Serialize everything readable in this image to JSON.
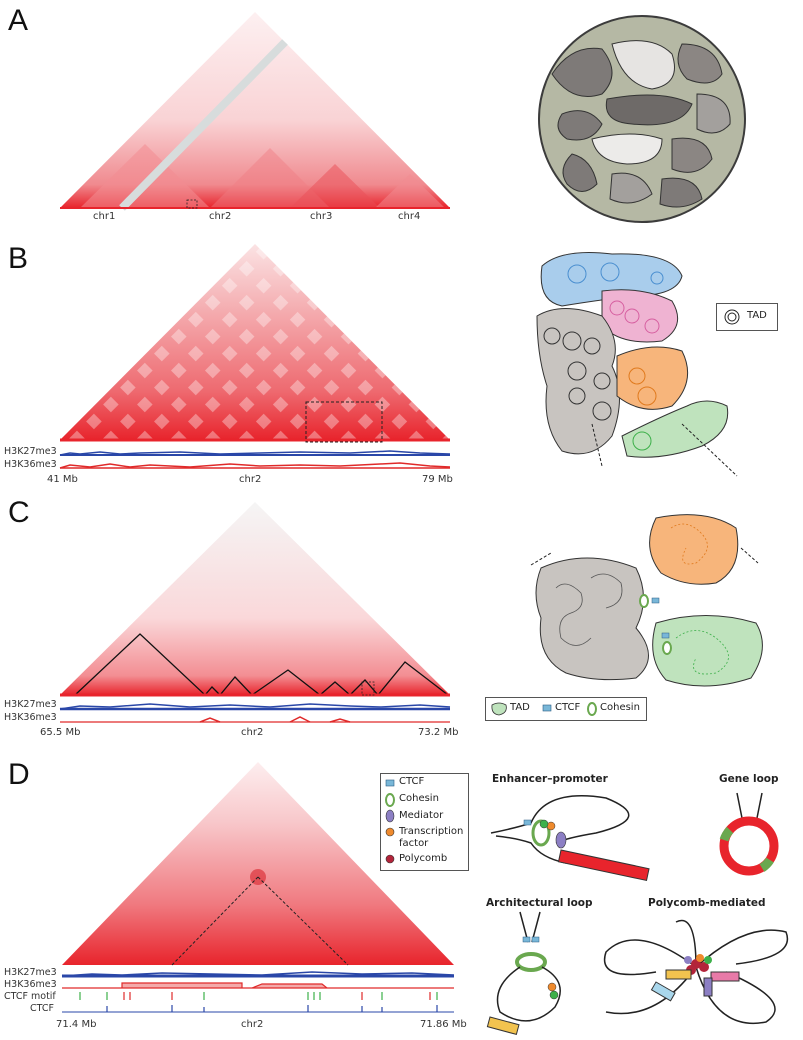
{
  "panels": {
    "a": {
      "letter": "A",
      "chromosomes": [
        "chr1",
        "chr2",
        "chr3",
        "chr4"
      ]
    },
    "b": {
      "letter": "B",
      "tracks": [
        "H3K27me3",
        "H3K36me3"
      ],
      "start": "41 Mb",
      "chrom": "chr2",
      "end": "79 Mb",
      "legend_tad": "TAD"
    },
    "c": {
      "letter": "C",
      "tracks": [
        "H3K27me3",
        "H3K36me3"
      ],
      "start": "65.5 Mb",
      "chrom": "chr2",
      "end": "73.2 Mb",
      "legend": [
        "TAD",
        "CTCF",
        "Cohesin"
      ]
    },
    "d": {
      "letter": "D",
      "tracks": [
        "H3K27me3",
        "H3K36me3",
        "CTCF motif",
        "CTCF"
      ],
      "start": "71.4 Mb",
      "chrom": "chr2",
      "end": "71.86 Mb",
      "legend": [
        "CTCF",
        "Cohesin",
        "Mediator",
        "Transcription factor",
        "Polycomb"
      ],
      "legend_tf_line1": "Transcription",
      "legend_tf_line2": "factor",
      "loops": [
        "Enhancer–promoter",
        "Gene loop",
        "Architectural loop",
        "Polycomb-mediated"
      ]
    }
  },
  "colors": {
    "hic_red": "#e8242c",
    "h3k27me3": "#2a47a8",
    "h3k36me3": "#e02a2a",
    "tad_blue": "#a9cdec",
    "tad_pink": "#efb3d2",
    "tad_grey": "#c8c4c0",
    "tad_orange": "#f7b57b",
    "tad_green": "#bfe3bd",
    "cohesin_green": "#6aa84f",
    "mediator_purple": "#8c7fc4",
    "tf_orange": "#ef8a2d",
    "polycomb_red": "#b3243a",
    "ctcf_blue": "#79b7d8"
  }
}
